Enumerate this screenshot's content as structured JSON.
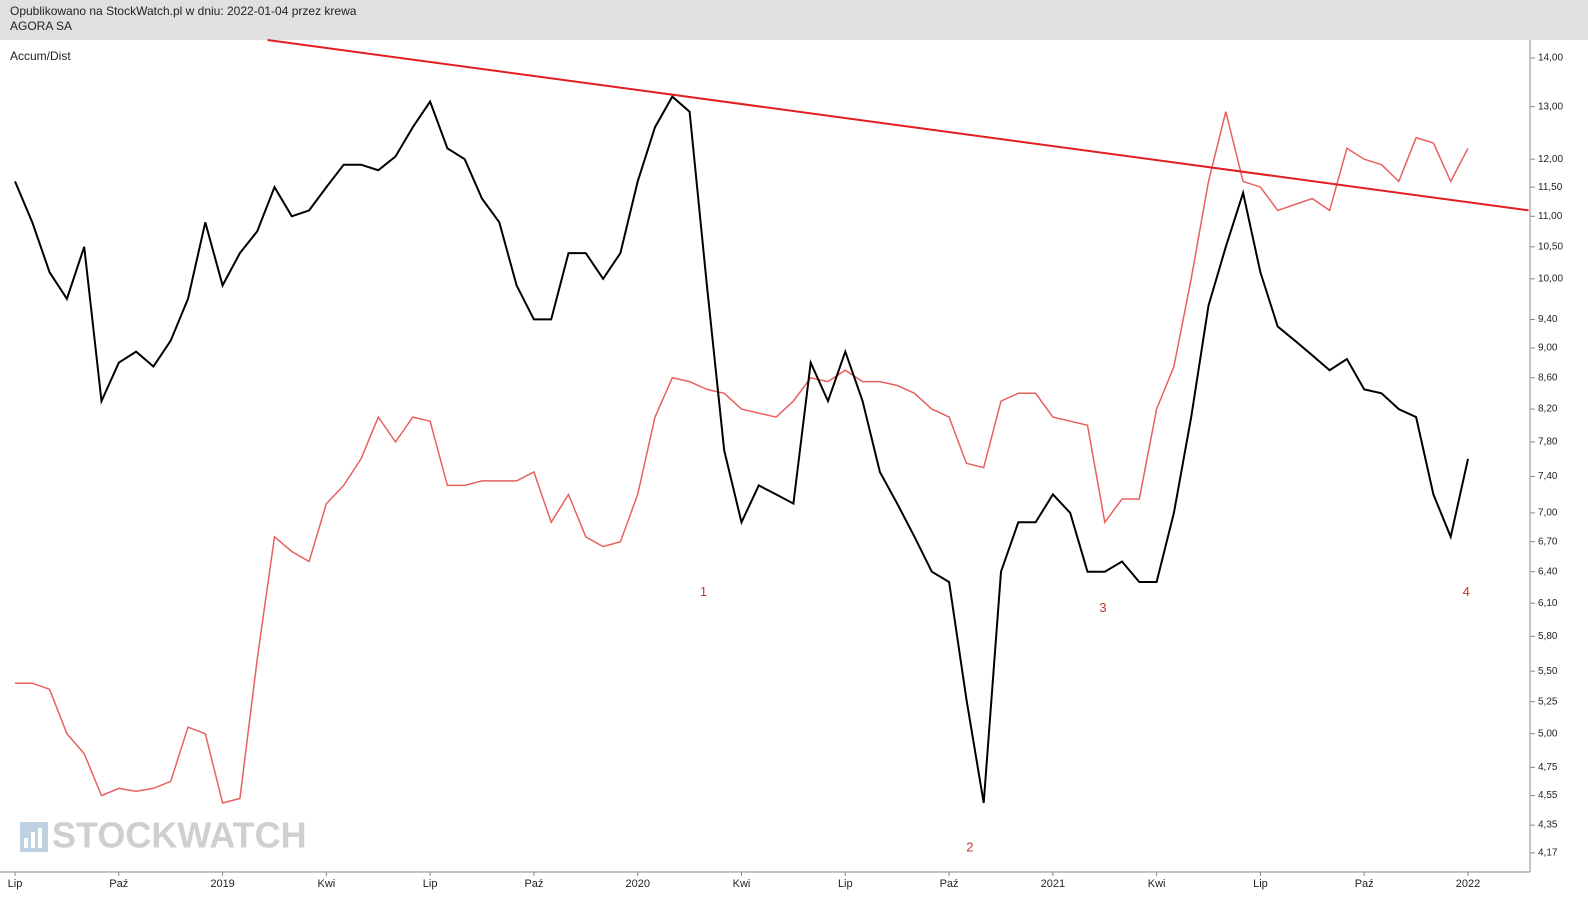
{
  "header": {
    "line1": "Opublikowano na StockWatch.pl w dniu: 2022-01-04 przez krewa",
    "line2": "AGORA SA"
  },
  "chart_data": {
    "type": "line",
    "indicator_label": "Accum/Dist",
    "watermark": "STOCKWATCH",
    "log_scale": true,
    "categories": [
      "Lip",
      null,
      null,
      null,
      null,
      null,
      "Paź",
      null,
      null,
      null,
      null,
      null,
      "2019",
      null,
      null,
      null,
      null,
      null,
      "Kwi",
      null,
      null,
      null,
      null,
      null,
      "Lip",
      null,
      null,
      null,
      null,
      null,
      "Paź",
      null,
      null,
      null,
      null,
      null,
      "2020",
      null,
      null,
      null,
      null,
      null,
      "Kwi",
      null,
      null,
      null,
      null,
      null,
      "Lip",
      null,
      null,
      null,
      null,
      null,
      "Paź",
      null,
      null,
      null,
      null,
      null,
      "2021",
      null,
      null,
      null,
      null,
      null,
      "Kwi",
      null,
      null,
      null,
      null,
      null,
      "Lip",
      null,
      null,
      null,
      null,
      null,
      "Paź",
      null,
      null,
      null,
      null,
      null,
      "2022"
    ],
    "series": [
      {
        "color": "#000000",
        "values": [
          11.6,
          10.9,
          10.1,
          9.7,
          10.5,
          8.3,
          8.8,
          8.95,
          8.75,
          9.1,
          9.7,
          10.9,
          9.9,
          10.4,
          10.75,
          11.5,
          11.0,
          11.1,
          11.5,
          11.9,
          11.9,
          11.8,
          12.05,
          12.6,
          13.1,
          12.2,
          12.0,
          11.3,
          10.9,
          9.9,
          9.4,
          9.4,
          10.4,
          10.4,
          10.0,
          10.4,
          11.6,
          12.6,
          13.2,
          12.9,
          9.9,
          7.7,
          6.9,
          7.3,
          7.2,
          7.1,
          8.8,
          8.3,
          8.95,
          8.3,
          7.45,
          7.1,
          6.75,
          6.4,
          6.3,
          5.27,
          4.5,
          6.4,
          6.9,
          6.9,
          7.2,
          7.0,
          6.4,
          6.4,
          6.5,
          6.3,
          6.3,
          7.0,
          8.1,
          9.6,
          10.5,
          11.4,
          10.1,
          9.3,
          9.1,
          8.9,
          8.7,
          8.85,
          8.45,
          8.4,
          8.2,
          8.1,
          7.2,
          6.75,
          7.6
        ]
      },
      {
        "name": "Accum/Dist",
        "color": "#e86060",
        "values": [
          5.4,
          5.4,
          5.35,
          5.0,
          4.85,
          4.55,
          4.6,
          4.58,
          4.6,
          4.65,
          5.05,
          5.0,
          4.5,
          4.53,
          5.6,
          6.75,
          6.6,
          6.5,
          7.1,
          7.3,
          7.6,
          8.1,
          7.8,
          8.1,
          8.05,
          7.3,
          7.3,
          7.35,
          7.35,
          7.35,
          7.45,
          6.9,
          7.2,
          6.75,
          6.65,
          6.7,
          7.2,
          8.1,
          8.6,
          8.55,
          8.45,
          8.4,
          8.2,
          8.15,
          8.1,
          8.3,
          8.6,
          8.55,
          8.7,
          8.55,
          8.55,
          8.5,
          8.4,
          8.2,
          8.1,
          7.55,
          7.5,
          8.3,
          8.4,
          8.4,
          8.1,
          8.05,
          8.0,
          6.9,
          7.15,
          7.15,
          8.2,
          8.75,
          10.0,
          11.6,
          12.9,
          11.6,
          11.5,
          11.1,
          11.2,
          11.3,
          11.1,
          12.2,
          12.0,
          11.9,
          11.6,
          12.4,
          12.3,
          11.6,
          12.2
        ]
      }
    ],
    "trendline": {
      "color": "#e31e1e",
      "points": [
        [
          14.6,
          14.39
        ],
        [
          87.5,
          11.1
        ]
      ]
    },
    "annotations": [
      {
        "text": "1",
        "at": [
          39.8,
          6.2
        ]
      },
      {
        "text": "2",
        "at": [
          55.2,
          4.2
        ]
      },
      {
        "text": "3",
        "at": [
          62.9,
          6.05
        ]
      },
      {
        "text": "4",
        "at": [
          83.9,
          6.2
        ]
      }
    ],
    "ylim": [
      4.05,
      14.39
    ],
    "yticks": [
      {
        "value": 14,
        "label": "14,00"
      },
      {
        "value": 13,
        "label": "13,00"
      },
      {
        "value": 12,
        "label": "12,00"
      },
      {
        "value": 11.5,
        "label": "11,50"
      },
      {
        "value": 11,
        "label": "11,00"
      },
      {
        "value": 10.5,
        "label": "10,50"
      },
      {
        "value": 10,
        "label": "10,00"
      },
      {
        "value": 9.4,
        "label": "9,40"
      },
      {
        "value": 9,
        "label": "9,00"
      },
      {
        "value": 8.6,
        "label": "8,60"
      },
      {
        "value": 8.2,
        "label": "8,20"
      },
      {
        "value": 7.8,
        "label": "7,80"
      },
      {
        "value": 7.4,
        "label": "7,40"
      },
      {
        "value": 7,
        "label": "7,00"
      },
      {
        "value": 6.7,
        "label": "6,70"
      },
      {
        "value": 6.4,
        "label": "6,40"
      },
      {
        "value": 6.1,
        "label": "6,10"
      },
      {
        "value": 5.8,
        "label": "5,80"
      },
      {
        "value": 5.5,
        "label": "5,50"
      },
      {
        "value": 5.25,
        "label": "5,25"
      },
      {
        "value": 5,
        "label": "5,00"
      },
      {
        "value": 4.75,
        "label": "4,75"
      },
      {
        "value": 4.55,
        "label": "4,55"
      },
      {
        "value": 4.35,
        "label": "4,35"
      },
      {
        "value": 4.17,
        "label": "4,17"
      }
    ]
  }
}
